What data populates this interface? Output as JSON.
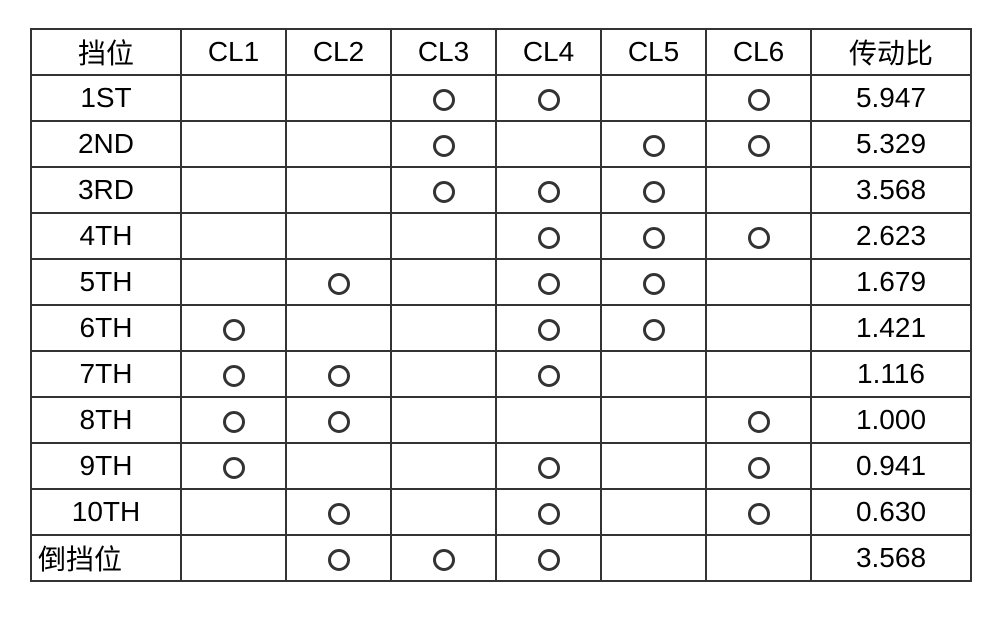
{
  "table": {
    "headers": {
      "gear": "挡位",
      "cl1": "CL1",
      "cl2": "CL2",
      "cl3": "CL3",
      "cl4": "CL4",
      "cl5": "CL5",
      "cl6": "CL6",
      "ratio": "传动比"
    },
    "rows": [
      {
        "gear": "1ST",
        "cl1": false,
        "cl2": false,
        "cl3": true,
        "cl4": true,
        "cl5": false,
        "cl6": true,
        "ratio": "5.947",
        "rev": false
      },
      {
        "gear": "2ND",
        "cl1": false,
        "cl2": false,
        "cl3": true,
        "cl4": false,
        "cl5": true,
        "cl6": true,
        "ratio": "5.329",
        "rev": false
      },
      {
        "gear": "3RD",
        "cl1": false,
        "cl2": false,
        "cl3": true,
        "cl4": true,
        "cl5": true,
        "cl6": false,
        "ratio": "3.568",
        "rev": false
      },
      {
        "gear": "4TH",
        "cl1": false,
        "cl2": false,
        "cl3": false,
        "cl4": true,
        "cl5": true,
        "cl6": true,
        "ratio": "2.623",
        "rev": false
      },
      {
        "gear": "5TH",
        "cl1": false,
        "cl2": true,
        "cl3": false,
        "cl4": true,
        "cl5": true,
        "cl6": false,
        "ratio": "1.679",
        "rev": false
      },
      {
        "gear": "6TH",
        "cl1": true,
        "cl2": false,
        "cl3": false,
        "cl4": true,
        "cl5": true,
        "cl6": false,
        "ratio": "1.421",
        "rev": false
      },
      {
        "gear": "7TH",
        "cl1": true,
        "cl2": true,
        "cl3": false,
        "cl4": true,
        "cl5": false,
        "cl6": false,
        "ratio": "1.116",
        "rev": false
      },
      {
        "gear": "8TH",
        "cl1": true,
        "cl2": true,
        "cl3": false,
        "cl4": false,
        "cl5": false,
        "cl6": true,
        "ratio": "1.000",
        "rev": false
      },
      {
        "gear": "9TH",
        "cl1": true,
        "cl2": false,
        "cl3": false,
        "cl4": true,
        "cl5": false,
        "cl6": true,
        "ratio": "0.941",
        "rev": false
      },
      {
        "gear": "10TH",
        "cl1": false,
        "cl2": true,
        "cl3": false,
        "cl4": true,
        "cl5": false,
        "cl6": true,
        "ratio": "0.630",
        "rev": false
      },
      {
        "gear": "倒挡位",
        "cl1": false,
        "cl2": true,
        "cl3": true,
        "cl4": true,
        "cl5": false,
        "cl6": false,
        "ratio": "3.568",
        "rev": true
      }
    ],
    "mark_color": "#333333",
    "border_color": "#333333",
    "background_color": "#ffffff",
    "header_fontsize": 28,
    "cell_fontsize": 28
  }
}
